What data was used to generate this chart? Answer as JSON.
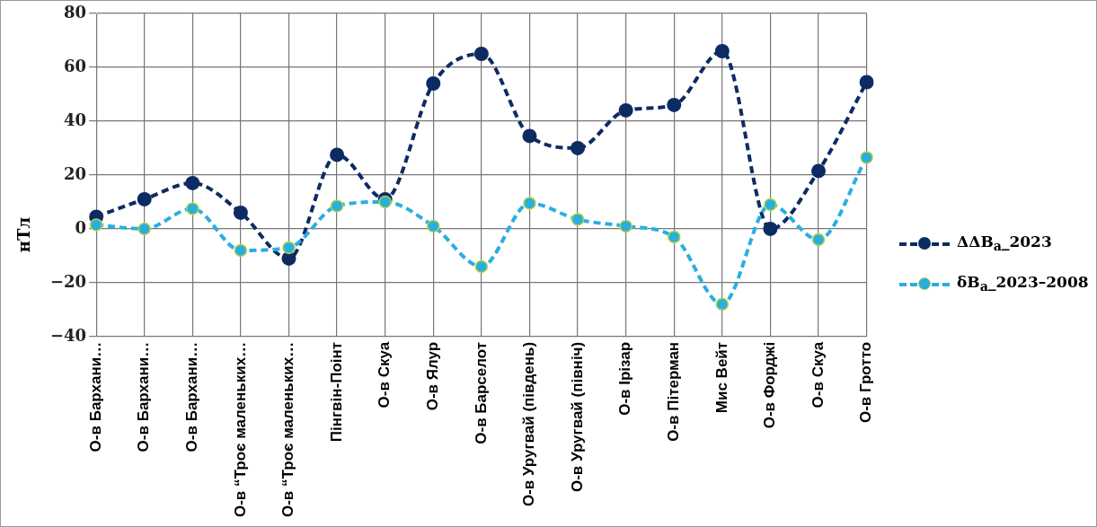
{
  "chart_data": {
    "type": "line",
    "ylabel": "нТл",
    "categories": [
      "О-в Бархани…",
      "О-в Бархани…",
      "О-в Бархани…",
      "О-в “Троє маленьких…",
      "О-в “Троє маленьких…",
      "Пінгвін-Поінт",
      "О-в Скуа",
      "О-в Ялур",
      "О-в Барселот",
      "О-в Уругвай (південь)",
      "О-в Уругвай (північ)",
      "О-в Ірізар",
      "О-в Пітерман",
      "Мис Вейт",
      "О-в Форджі",
      "О-в Скуа",
      "О-в Гротто"
    ],
    "series": [
      {
        "name": "ΔΔB$_{a}$_2023",
        "color": "#0d2b63",
        "values": [
          4.5,
          11,
          17,
          6,
          -11,
          27.5,
          11,
          54,
          65,
          34.5,
          30,
          44,
          46,
          66,
          0,
          21.5,
          54.5
        ]
      },
      {
        "name": "δB$_{a}$_2023–2008",
        "color": "#2aaee0",
        "values": [
          1.5,
          0,
          7.5,
          -8,
          -7,
          8.5,
          10,
          1,
          -14,
          9.5,
          3.5,
          1,
          -3,
          -28,
          9,
          -4,
          26.5
        ]
      }
    ],
    "ylim": [
      -40,
      80
    ],
    "yticks": [
      -40,
      -20,
      0,
      20,
      40,
      60,
      80
    ],
    "grid": true,
    "legend": "right",
    "marker": "circle",
    "line_style": "dashed"
  }
}
